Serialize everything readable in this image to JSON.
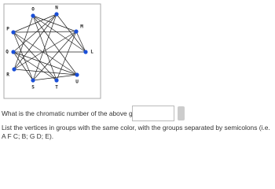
{
  "graph": {
    "nodes": [
      {
        "label": "O"
      },
      {
        "label": "N"
      },
      {
        "label": "M"
      },
      {
        "label": "L"
      },
      {
        "label": "U"
      },
      {
        "label": "T"
      },
      {
        "label": "S"
      },
      {
        "label": "R"
      },
      {
        "label": "Q"
      },
      {
        "label": "P"
      }
    ]
  },
  "questions": [
    {
      "text": "What is the chromatic number of the above graph?"
    },
    {
      "text": "List the vertices in groups with the same color, with the groups separated by semicolons (i.e. A F C; B; G D; E)."
    }
  ]
}
